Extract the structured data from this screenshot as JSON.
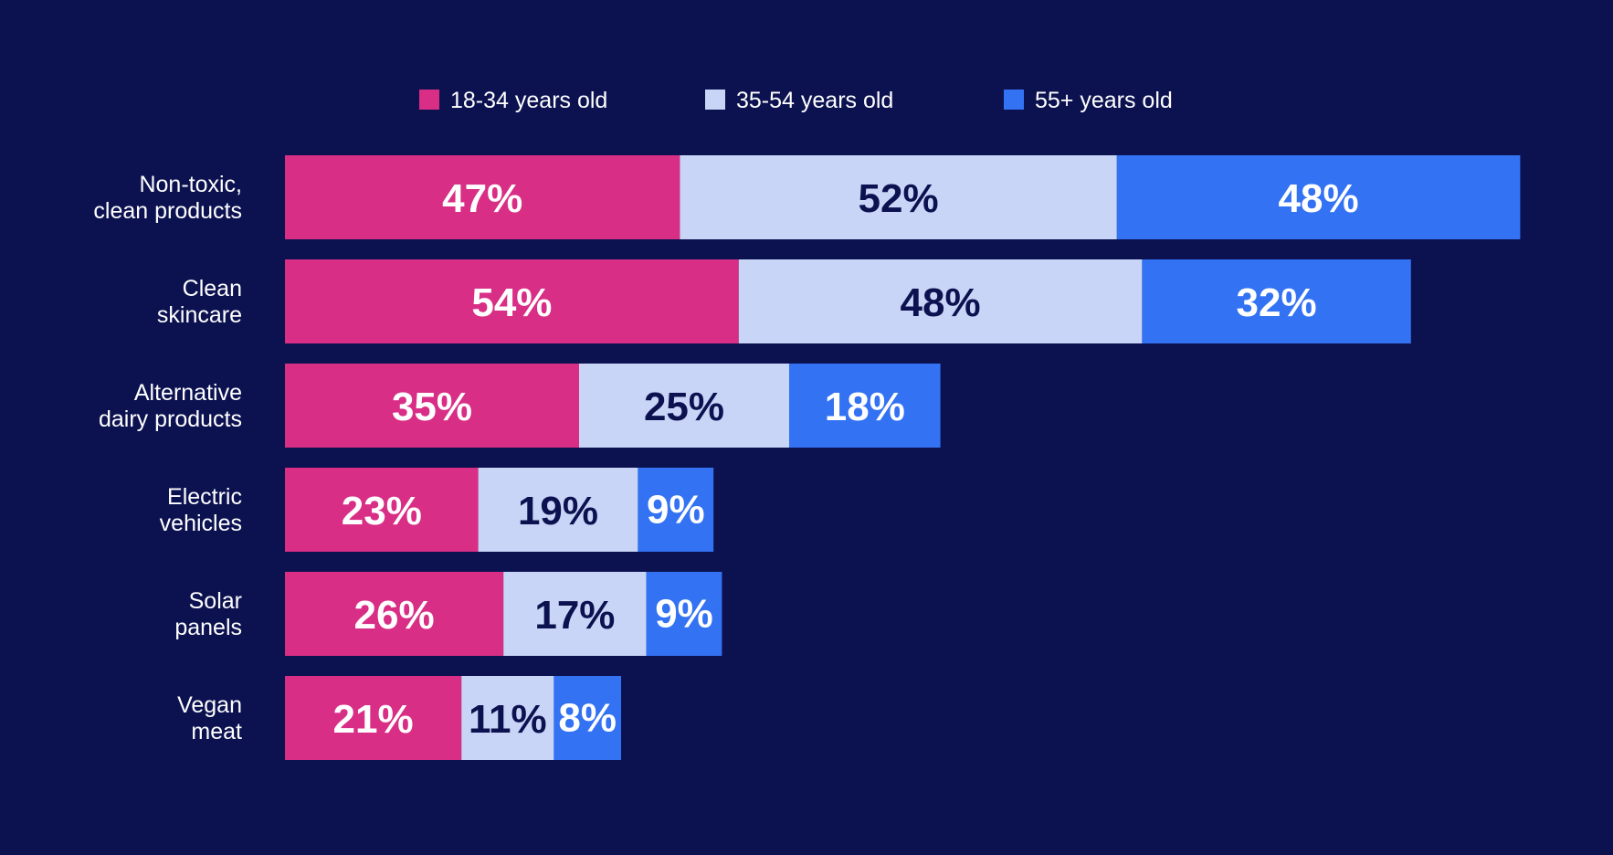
{
  "chart_data": {
    "type": "bar",
    "orientation": "horizontal",
    "stacked": true,
    "categories": [
      [
        "Non-toxic,",
        "clean products"
      ],
      [
        "Clean",
        "skincare"
      ],
      [
        "Alternative",
        "dairy products"
      ],
      [
        "Electric",
        "vehicles"
      ],
      [
        "Solar",
        "panels"
      ],
      [
        "Vegan",
        "meat"
      ]
    ],
    "series": [
      {
        "name": "18-34 years old",
        "values": [
          47,
          54,
          35,
          23,
          26,
          21
        ],
        "color": "#d82e86",
        "label_color": "#ffffff"
      },
      {
        "name": "35-54 years old",
        "values": [
          52,
          48,
          25,
          19,
          17,
          11
        ],
        "color": "#c9d5f6",
        "label_color": "#0c1250"
      },
      {
        "name": "55+ years old",
        "values": [
          48,
          32,
          18,
          9,
          9,
          8
        ],
        "color": "#3372f2",
        "label_color": "#ffffff"
      }
    ],
    "value_suffix": "%",
    "legend_position": "top",
    "grid": false,
    "background_color": "#0c1250"
  }
}
